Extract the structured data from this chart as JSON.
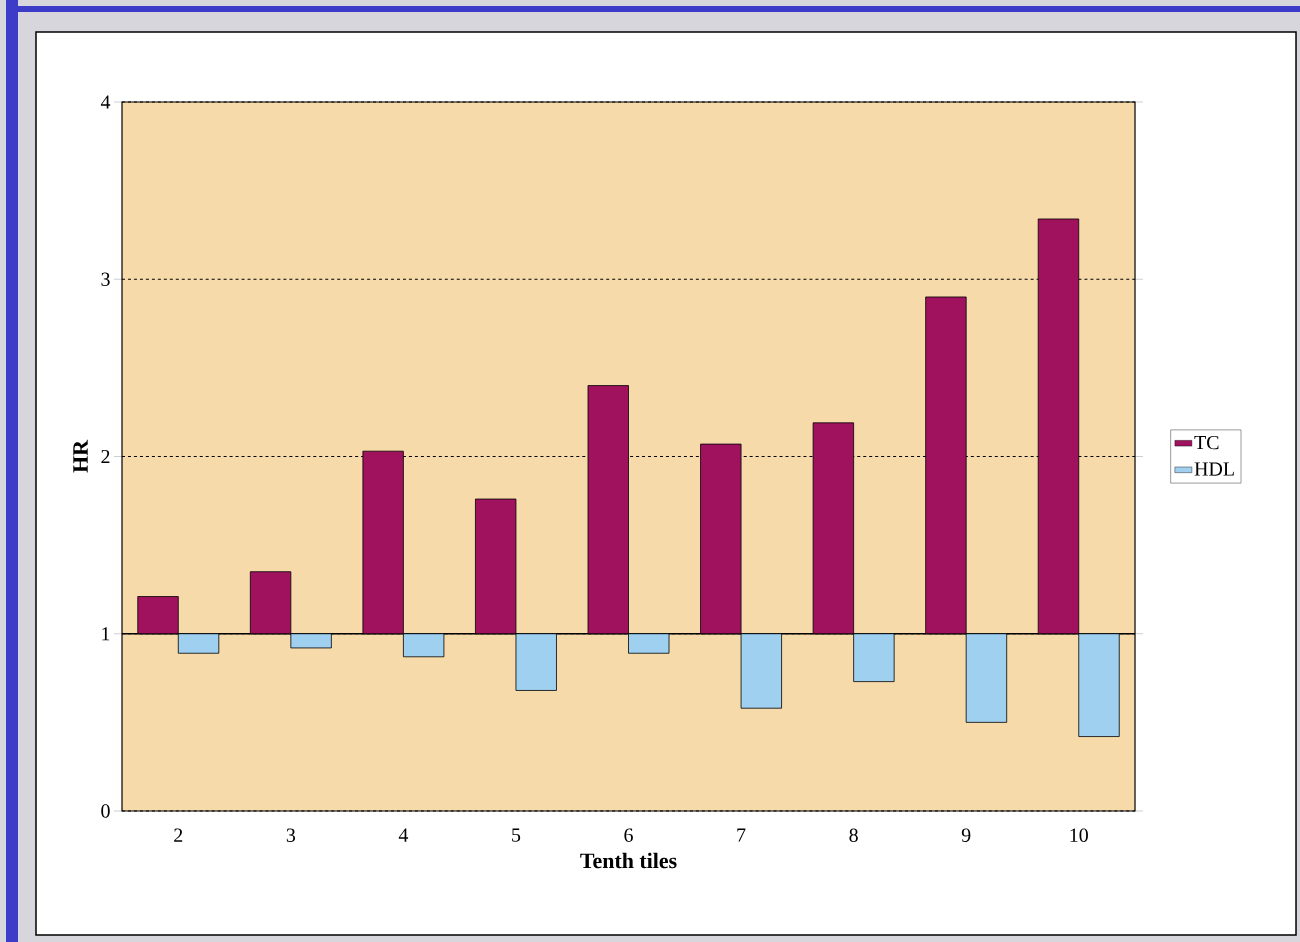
{
  "chart_data": {
    "type": "bar",
    "xlabel": "Tenth tiles",
    "ylabel": "HR",
    "categories": [
      "2",
      "3",
      "4",
      "5",
      "6",
      "7",
      "8",
      "9",
      "10"
    ],
    "series": [
      {
        "name": "TC",
        "color": "#a0125e",
        "base": [
          1,
          1,
          1,
          1,
          1,
          1,
          1,
          1,
          1
        ],
        "values": [
          0.21,
          0.35,
          1.03,
          0.76,
          1.4,
          1.07,
          1.19,
          1.9,
          2.34
        ]
      },
      {
        "name": "HDL",
        "color": "#9fd0f0",
        "base": [
          1,
          1,
          1,
          1,
          1,
          1,
          1,
          1,
          1
        ],
        "values": [
          -0.11,
          -0.08,
          -0.13,
          -0.32,
          -0.11,
          -0.42,
          -0.27,
          -0.5,
          -0.58
        ]
      }
    ],
    "ylim": [
      0,
      4
    ],
    "yticks": [
      0,
      1,
      2,
      3,
      4
    ],
    "grid": "y",
    "legend": "right",
    "ref_lines": [
      {
        "axis": "y",
        "value": 1,
        "line_style": "solid"
      }
    ]
  }
}
